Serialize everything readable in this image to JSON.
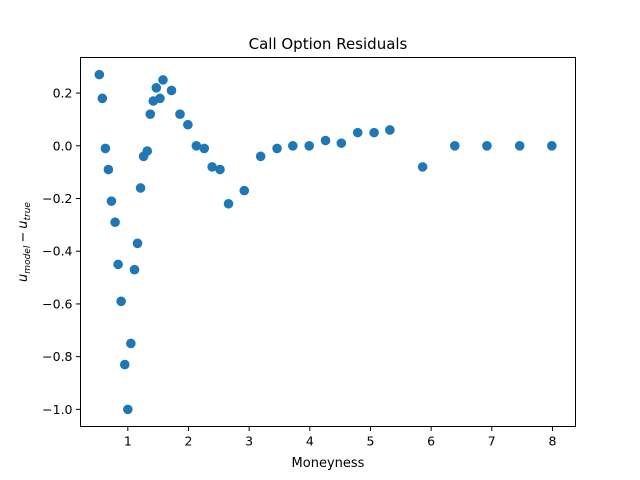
{
  "chart_data": {
    "type": "scatter",
    "title": "Call Option Residuals",
    "xlabel": "Moneyness",
    "ylabel": {
      "base1": "u",
      "sub1": "model",
      "op": "−",
      "base2": "u",
      "sub2": "true"
    },
    "xlim": [
      0.22,
      8.38
    ],
    "ylim": [
      -1.065,
      0.335
    ],
    "xticks": [
      {
        "value": 1,
        "label": "1"
      },
      {
        "value": 2,
        "label": "2"
      },
      {
        "value": 3,
        "label": "3"
      },
      {
        "value": 4,
        "label": "4"
      },
      {
        "value": 5,
        "label": "5"
      },
      {
        "value": 6,
        "label": "6"
      },
      {
        "value": 7,
        "label": "7"
      },
      {
        "value": 8,
        "label": "8"
      }
    ],
    "yticks": [
      {
        "value": 0.2,
        "label": "0.2"
      },
      {
        "value": 0.0,
        "label": "0.0"
      },
      {
        "value": -0.2,
        "label": "−0.2"
      },
      {
        "value": -0.4,
        "label": "−0.4"
      },
      {
        "value": -0.6,
        "label": "−0.6"
      },
      {
        "value": -0.8,
        "label": "−0.8"
      },
      {
        "value": -1.0,
        "label": "−1.0"
      }
    ],
    "grid": false,
    "legend": "none",
    "marker_color": "#1f77b4",
    "series": [
      {
        "x": [
          0.53,
          0.58,
          0.63,
          0.68,
          0.73,
          0.79,
          0.84,
          0.89,
          0.95,
          1.0,
          1.05,
          1.11,
          1.16,
          1.21,
          1.26,
          1.32,
          1.37,
          1.42,
          1.47,
          1.53,
          1.58,
          1.72,
          1.86,
          1.99,
          2.13,
          2.26,
          2.39,
          2.52,
          2.66,
          2.92,
          3.19,
          3.46,
          3.72,
          3.99,
          4.26,
          4.52,
          4.79,
          5.06,
          5.32,
          5.86,
          6.39,
          6.92,
          7.46,
          7.99
        ],
        "y": [
          0.27,
          0.18,
          -0.01,
          -0.09,
          -0.21,
          -0.29,
          -0.45,
          -0.59,
          -0.83,
          -1.0,
          -0.75,
          -0.47,
          -0.37,
          -0.16,
          -0.04,
          -0.02,
          0.12,
          0.17,
          0.22,
          0.18,
          0.25,
          0.21,
          0.12,
          0.08,
          0.0,
          -0.01,
          -0.08,
          -0.09,
          -0.22,
          -0.17,
          -0.04,
          -0.01,
          0.0,
          0.0,
          0.02,
          0.01,
          0.05,
          0.05,
          0.06,
          -0.08,
          -0.0,
          0.0,
          0.0,
          0.0
        ]
      }
    ]
  }
}
